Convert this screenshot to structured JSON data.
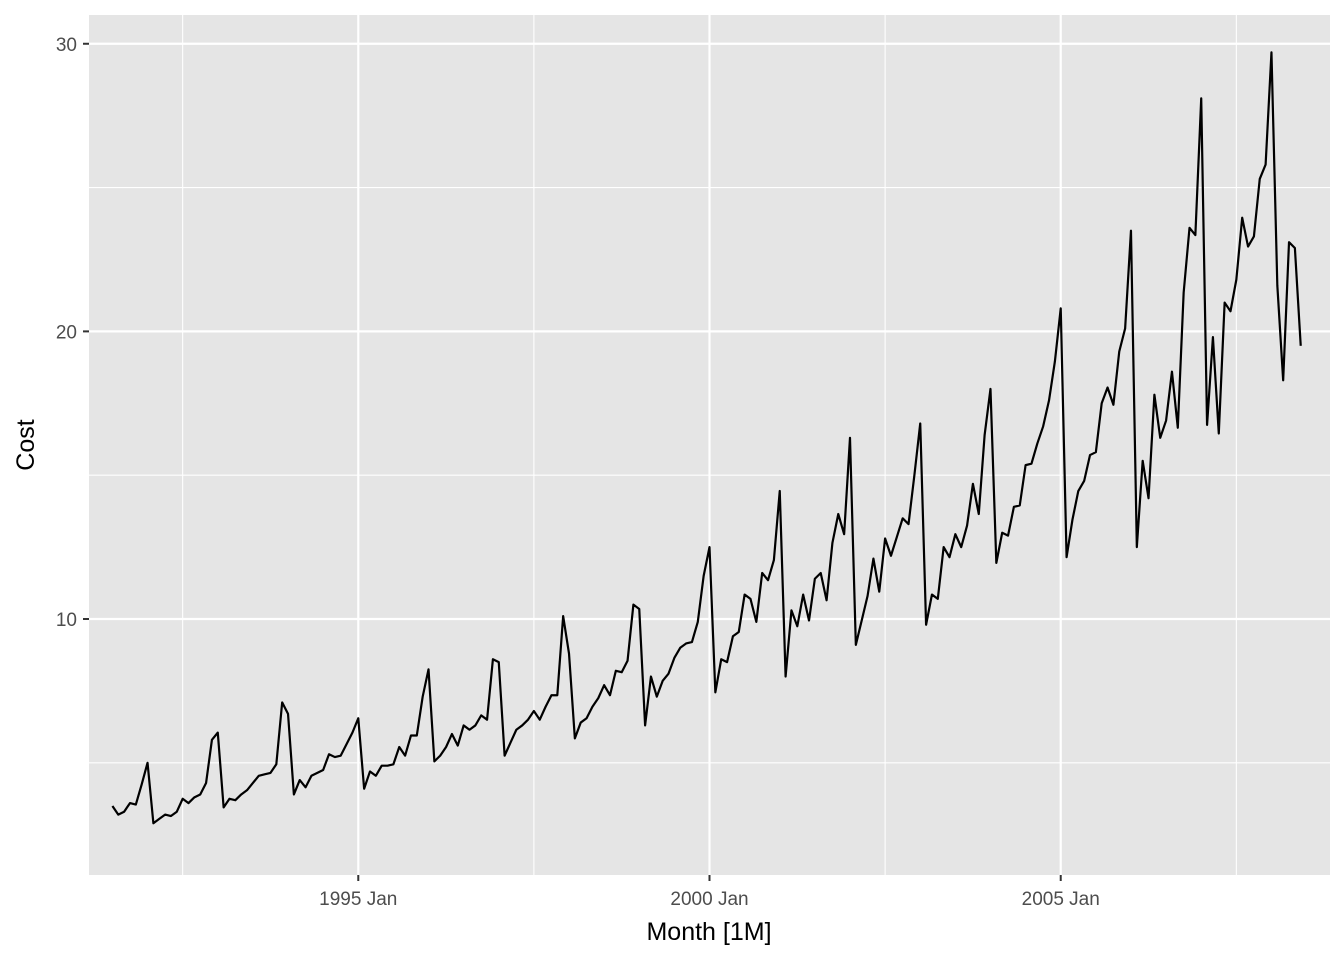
{
  "chart_data": {
    "type": "line",
    "xlabel": "Month [1M]",
    "ylabel": "Cost",
    "x_start": "1991 Jul",
    "x_ticks": [
      {
        "value": "1995-01",
        "label": "1995 Jan"
      },
      {
        "value": "2000-01",
        "label": "2000 Jan"
      },
      {
        "value": "2005-01",
        "label": "2005 Jan"
      }
    ],
    "y_ticks": [
      10,
      20,
      30
    ],
    "ylim": [
      1.1,
      31.0
    ],
    "xlim": [
      "1991-03",
      "2008-11"
    ],
    "grid": true,
    "background": "#e5e5e5",
    "grid_color": "#ffffff",
    "line_color": "#000000",
    "series": [
      {
        "values": [
          3.5,
          3.2,
          3.3,
          3.6,
          3.55,
          4.25,
          5.0,
          2.9,
          3.05,
          3.2,
          3.15,
          3.3,
          3.75,
          3.6,
          3.8,
          3.9,
          4.3,
          5.8,
          6.05,
          3.45,
          3.75,
          3.7,
          3.9,
          4.05,
          4.3,
          4.55,
          4.6,
          4.65,
          4.95,
          7.1,
          6.7,
          3.9,
          4.4,
          4.15,
          4.55,
          4.65,
          4.75,
          5.3,
          5.2,
          5.25,
          5.65,
          6.05,
          6.55,
          4.1,
          4.7,
          4.55,
          4.9,
          4.9,
          4.95,
          5.55,
          5.25,
          5.95,
          5.95,
          7.3,
          8.25,
          5.05,
          5.25,
          5.55,
          6.0,
          5.6,
          6.3,
          6.15,
          6.3,
          6.65,
          6.5,
          8.6,
          8.5,
          5.25,
          5.7,
          6.15,
          6.3,
          6.5,
          6.8,
          6.5,
          6.95,
          7.35,
          7.35,
          10.1,
          8.8,
          5.85,
          6.4,
          6.55,
          6.95,
          7.25,
          7.7,
          7.35,
          8.2,
          8.15,
          8.55,
          10.5,
          10.35,
          6.3,
          8.0,
          7.3,
          7.85,
          8.1,
          8.65,
          9.0,
          9.15,
          9.2,
          9.9,
          11.5,
          12.5,
          7.45,
          8.6,
          8.5,
          9.4,
          9.55,
          10.85,
          10.7,
          9.9,
          11.6,
          11.35,
          12.05,
          14.45,
          8.0,
          10.3,
          9.75,
          10.85,
          9.95,
          11.4,
          11.6,
          10.65,
          12.65,
          13.65,
          12.95,
          16.3,
          9.1,
          9.95,
          10.8,
          12.1,
          10.95,
          12.8,
          12.2,
          12.85,
          13.5,
          13.3,
          15.0,
          16.8,
          9.8,
          10.85,
          10.7,
          12.5,
          12.15,
          12.95,
          12.5,
          13.25,
          14.7,
          13.65,
          16.4,
          18.0,
          11.95,
          13.0,
          12.9,
          13.9,
          13.95,
          15.35,
          15.4,
          16.1,
          16.7,
          17.6,
          18.95,
          20.8,
          12.15,
          13.45,
          14.45,
          14.8,
          15.7,
          15.8,
          17.5,
          18.05,
          17.45,
          19.3,
          20.1,
          23.5,
          12.5,
          15.5,
          14.2,
          17.8,
          16.3,
          16.9,
          18.6,
          16.65,
          21.35,
          23.6,
          23.35,
          28.1,
          16.75,
          19.8,
          16.45,
          21.0,
          20.7,
          21.8,
          23.95,
          22.95,
          23.3,
          25.3,
          25.8,
          29.7,
          21.6,
          18.3,
          23.1,
          22.9,
          19.5
        ]
      }
    ]
  }
}
